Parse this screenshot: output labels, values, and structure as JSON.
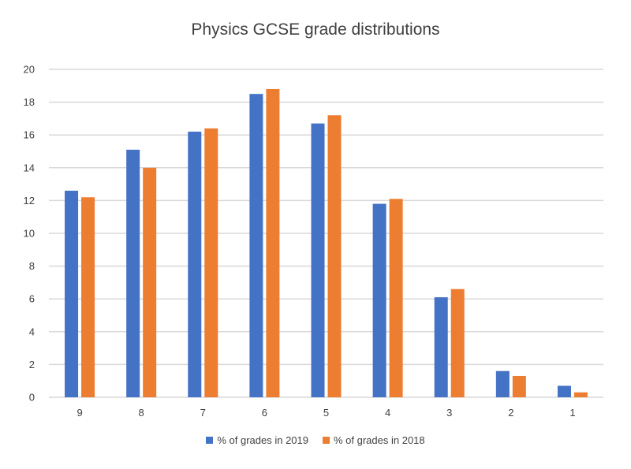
{
  "chart_data": {
    "type": "bar",
    "title": "Physics GCSE grade distributions",
    "categories": [
      "9",
      "8",
      "7",
      "6",
      "5",
      "4",
      "3",
      "2",
      "1"
    ],
    "series": [
      {
        "name": "% of grades in 2019",
        "color": "#4472C4",
        "values": [
          12.6,
          15.1,
          16.2,
          18.5,
          16.7,
          11.8,
          6.1,
          1.6,
          0.7
        ]
      },
      {
        "name": "% of grades in 2018",
        "color": "#ED7D31",
        "values": [
          12.2,
          14.0,
          16.4,
          18.8,
          17.2,
          12.1,
          6.6,
          1.3,
          0.3
        ]
      }
    ],
    "yticks": [
      "0",
      "2",
      "4",
      "6",
      "8",
      "10",
      "12",
      "14",
      "16",
      "18",
      "20"
    ],
    "ylim": [
      0,
      20
    ],
    "grid": true,
    "legend_position": "bottom"
  }
}
